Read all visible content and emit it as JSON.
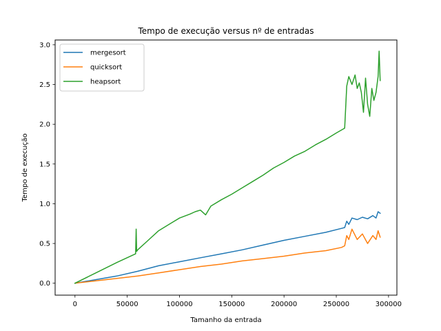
{
  "chart_data": {
    "type": "line",
    "title": "Tempo de execução versus nº de entradas",
    "xlabel": "Tamanho da entrada",
    "ylabel": "Tempo de execução",
    "xlim": [
      -19000,
      308000
    ],
    "ylim": [
      -0.15,
      3.06
    ],
    "xticks": [
      0,
      50000,
      100000,
      150000,
      200000,
      250000,
      300000
    ],
    "xtick_labels": [
      "0",
      "50000",
      "100000",
      "150000",
      "200000",
      "250000",
      "300000"
    ],
    "yticks": [
      0.0,
      0.5,
      1.0,
      1.5,
      2.0,
      2.5,
      3.0
    ],
    "ytick_labels": [
      "0.0",
      "0.5",
      "1.0",
      "1.5",
      "2.0",
      "2.5",
      "3.0"
    ],
    "grid": false,
    "legend_position": "top-left",
    "series": [
      {
        "name": "mergesort",
        "color": "#1f77b4",
        "x": [
          0,
          20000,
          40000,
          60000,
          80000,
          100000,
          120000,
          140000,
          160000,
          180000,
          200000,
          220000,
          240000,
          255000,
          258000,
          260000,
          262000,
          265000,
          270000,
          275000,
          280000,
          285000,
          288000,
          290000,
          292000
        ],
        "y": [
          0.0,
          0.045,
          0.09,
          0.15,
          0.22,
          0.27,
          0.32,
          0.37,
          0.42,
          0.48,
          0.54,
          0.59,
          0.64,
          0.69,
          0.7,
          0.78,
          0.74,
          0.82,
          0.8,
          0.83,
          0.81,
          0.85,
          0.82,
          0.9,
          0.88
        ]
      },
      {
        "name": "quicksort",
        "color": "#ff7f0e",
        "x": [
          0,
          20000,
          40000,
          60000,
          80000,
          100000,
          120000,
          140000,
          160000,
          180000,
          200000,
          220000,
          240000,
          255000,
          258000,
          260000,
          262000,
          265000,
          270000,
          275000,
          280000,
          285000,
          288000,
          290000,
          292000
        ],
        "y": [
          0.0,
          0.03,
          0.06,
          0.09,
          0.13,
          0.17,
          0.21,
          0.24,
          0.28,
          0.31,
          0.34,
          0.38,
          0.41,
          0.45,
          0.47,
          0.6,
          0.55,
          0.68,
          0.55,
          0.62,
          0.5,
          0.6,
          0.55,
          0.66,
          0.58
        ]
      },
      {
        "name": "heapsort",
        "color": "#2ca02c",
        "x": [
          0,
          20000,
          40000,
          58000,
          58500,
          59000,
          60000,
          70000,
          80000,
          90000,
          100000,
          110000,
          115000,
          120000,
          125000,
          130000,
          140000,
          150000,
          160000,
          170000,
          180000,
          190000,
          200000,
          210000,
          220000,
          230000,
          240000,
          250000,
          258000,
          260000,
          262000,
          265000,
          268000,
          270000,
          272000,
          274000,
          276000,
          278000,
          280000,
          282000,
          284000,
          286000,
          288000,
          290000,
          291000,
          292000
        ],
        "y": [
          0.0,
          0.13,
          0.26,
          0.37,
          0.68,
          0.4,
          0.42,
          0.54,
          0.66,
          0.74,
          0.82,
          0.87,
          0.9,
          0.92,
          0.86,
          0.97,
          1.05,
          1.12,
          1.2,
          1.28,
          1.36,
          1.45,
          1.52,
          1.6,
          1.66,
          1.74,
          1.81,
          1.89,
          1.95,
          2.48,
          2.6,
          2.5,
          2.62,
          2.45,
          2.52,
          2.4,
          2.15,
          2.58,
          2.25,
          2.1,
          2.45,
          2.3,
          2.4,
          2.6,
          2.92,
          2.55
        ]
      }
    ]
  }
}
